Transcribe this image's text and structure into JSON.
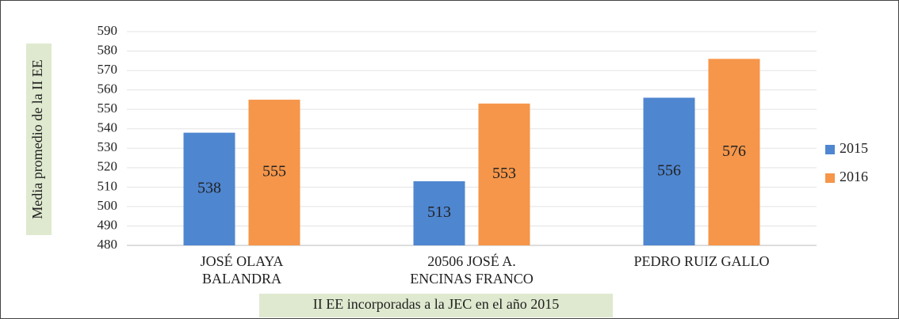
{
  "chart_data": {
    "type": "bar",
    "ylabel": "Media promedio de la II EE",
    "xlabel": "II EE incorporadas a la JEC en el año 2015",
    "categories": [
      [
        "JOSÉ OLAYA",
        "BALANDRA"
      ],
      [
        "20506 JOSÉ A.",
        "ENCINAS FRANCO"
      ],
      [
        "PEDRO RUIZ GALLO"
      ]
    ],
    "series": [
      {
        "name": "2015",
        "color": "#4f86d0",
        "values": [
          538,
          513,
          556
        ]
      },
      {
        "name": "2016",
        "color": "#f5964a",
        "values": [
          555,
          553,
          576
        ]
      }
    ],
    "ylim": [
      480,
      590
    ],
    "yticks": [
      480,
      490,
      500,
      510,
      520,
      530,
      540,
      550,
      560,
      570,
      580,
      590
    ],
    "grid": true,
    "legend": "right"
  }
}
